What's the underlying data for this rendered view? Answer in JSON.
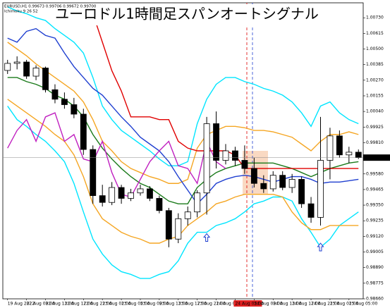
{
  "chart_data": {
    "type": "candlestick",
    "title": "ユーロドル1時間足スパンオートシグナル",
    "info_lines": [
      "EURUSD,H1 0.99673 0.99706 0.99672 0.99700",
      "Ichimoku 9 26 52"
    ],
    "categories": [
      "19 Aug 2022",
      null,
      "22 Aug 09:00",
      null,
      "22 Aug 13:00",
      null,
      "22 Aug 17:00",
      null,
      "22 Aug 21:00",
      null,
      "23 Aug 01:00",
      null,
      "23 Aug 05:00",
      null,
      "23 Aug 09:00",
      null,
      "23 Aug 13:00",
      null,
      "23 Aug 17:00",
      null,
      "23 Aug 21:00",
      null,
      "24 Aug 01:00",
      null,
      "24 Aug 05:00",
      null,
      "24 Aug 09:00",
      null,
      "24 Aug 13:00",
      null,
      "24 Aug 17:00",
      null,
      "24 Aug 21:00",
      null,
      "25 Aug 01:00",
      null,
      "25 Aug 05:00",
      null
    ],
    "highlighted_label_index": 24,
    "open": [
      1.00342,
      1.00394,
      1.00404,
      1.003,
      1.0036,
      1.002,
      1.0013,
      1.0009,
      1.0002,
      0.9976,
      0.9942,
      0.9937,
      0.9948,
      0.994,
      0.9944,
      0.9947,
      0.994,
      0.9931,
      0.991,
      0.9925,
      0.993,
      0.9944,
      0.9995,
      0.9968,
      0.9975,
      0.9968,
      0.9962,
      0.9951,
      0.9947,
      0.9957,
      0.9948,
      0.9954,
      0.9936,
      0.9926,
      0.9968,
      0.9986,
      0.9972,
      0.9974
    ],
    "high": [
      1.0042,
      1.00446,
      1.0042,
      1.0038,
      1.0037,
      1.0024,
      1.0018,
      1.0014,
      1.0006,
      0.9979,
      0.995,
      0.9952,
      0.995,
      0.9947,
      0.995,
      0.9949,
      0.9942,
      0.9933,
      0.9929,
      0.9934,
      0.9946,
      1.0,
      1.0004,
      0.998,
      0.9978,
      0.9979,
      0.997,
      0.9957,
      0.996,
      0.996,
      0.9958,
      0.9956,
      0.9941,
      1.0,
      0.9992,
      0.999,
      0.9978,
      0.9976
    ],
    "low": [
      1.00316,
      1.0035,
      1.0028,
      1.0027,
      1.0018,
      1.001,
      1.0006,
      0.9999,
      0.9972,
      0.9936,
      0.9934,
      0.9935,
      0.9936,
      0.9938,
      0.9942,
      0.9938,
      0.9929,
      0.9904,
      0.9907,
      0.992,
      0.9926,
      0.9928,
      0.9962,
      0.9965,
      0.9964,
      0.9958,
      0.9948,
      0.9944,
      0.9945,
      0.9946,
      0.9944,
      0.9933,
      0.9922,
      0.992,
      0.9954,
      0.997,
      0.9966,
      0.9969
    ],
    "close": [
      1.00394,
      1.00404,
      1.003,
      1.0036,
      1.002,
      1.0013,
      1.0009,
      1.0002,
      0.9976,
      0.9942,
      0.9937,
      0.9948,
      0.994,
      0.9944,
      0.9947,
      0.994,
      0.9931,
      0.991,
      0.9925,
      0.993,
      0.9944,
      0.9995,
      0.9968,
      0.9975,
      0.9968,
      0.9962,
      0.9951,
      0.9947,
      0.9957,
      0.9948,
      0.9954,
      0.9936,
      0.9926,
      0.9968,
      0.9986,
      0.9972,
      0.9974,
      0.997
    ],
    "up_color": "#ffffff",
    "down_color": "#000000",
    "series": [
      {
        "color": "#00e5ff",
        "values": [
          1.0081,
          1.0078,
          1.0076,
          1.0073,
          1.0071,
          1.0065,
          1.006,
          1.0055,
          1.0047,
          1.0029,
          1.0008,
          0.9998,
          0.999,
          0.9985,
          0.998,
          0.9975,
          0.9969,
          0.9964,
          0.9964,
          0.9967,
          0.9995,
          1.0013,
          1.0024,
          1.0029,
          1.0029,
          1.0026,
          1.0024,
          1.0021,
          1.0019,
          1.0016,
          1.0011,
          1.0003,
          0.9993,
          1.0008,
          1.0011,
          1.0003,
          0.9998,
          0.9995
        ]
      },
      {
        "color": "#00e5ff",
        "values": [
          1.0008,
          0.9998,
          0.9993,
          0.9987,
          0.9982,
          0.9975,
          0.9967,
          0.9951,
          0.993,
          0.991,
          0.9899,
          0.9891,
          0.9886,
          0.9884,
          0.9881,
          0.9881,
          0.9884,
          0.9886,
          0.9894,
          0.9907,
          0.9915,
          0.9915,
          0.992,
          0.9922,
          0.9925,
          0.993,
          0.9936,
          0.9938,
          0.9941,
          0.9941,
          0.9938,
          0.9925,
          0.9915,
          0.9904,
          0.991,
          0.992,
          0.9925,
          0.993
        ]
      },
      {
        "color": "#f5a623",
        "values": [
          1.0055,
          1.005,
          1.0045,
          1.0039,
          1.0034,
          1.0029,
          1.0024,
          1.0019,
          1.0011,
          0.9998,
          0.9982,
          0.9975,
          0.9967,
          0.9962,
          0.9959,
          0.9956,
          0.9954,
          0.9951,
          0.9951,
          0.9954,
          0.9977,
          0.9987,
          0.999,
          0.9993,
          0.9993,
          0.9992,
          0.999,
          0.999,
          0.9989,
          0.9987,
          0.9985,
          0.998,
          0.9975,
          0.9982,
          0.9987,
          0.9987,
          0.9989,
          0.9987
        ]
      },
      {
        "color": "#f5a623",
        "values": [
          1.0013,
          1.0008,
          1.0003,
          0.9998,
          0.9993,
          0.9987,
          0.9982,
          0.9972,
          0.9956,
          0.9936,
          0.9925,
          0.992,
          0.9915,
          0.9912,
          0.991,
          0.9907,
          0.9907,
          0.991,
          0.9912,
          0.992,
          0.9925,
          0.993,
          0.9936,
          0.9938,
          0.9941,
          0.9943,
          0.9943,
          0.9943,
          0.9943,
          0.9941,
          0.993,
          0.9922,
          0.9917,
          0.9917,
          0.992,
          0.992,
          0.992,
          0.992
        ]
      },
      {
        "color": "#1a7a1a",
        "values": [
          1.0029,
          1.0029,
          1.0026,
          1.0024,
          1.0021,
          1.0016,
          1.0013,
          1.0008,
          1.0,
          0.9987,
          0.9977,
          0.9969,
          0.9962,
          0.9956,
          0.9951,
          0.9948,
          0.9943,
          0.9938,
          0.9936,
          0.9936,
          0.9948,
          0.9954,
          0.9959,
          0.9962,
          0.9964,
          0.9966,
          0.9966,
          0.9966,
          0.9966,
          0.9964,
          0.9962,
          0.9959,
          0.9956,
          0.9959,
          0.9962,
          0.9964,
          0.9966,
          0.9967
        ]
      },
      {
        "color": "#e00000",
        "values": [
          null,
          null,
          null,
          null,
          null,
          null,
          null,
          null,
          null,
          1.0076,
          1.0055,
          1.0034,
          1.0019,
          1.0,
          1.0,
          1.0,
          0.9998,
          0.9998,
          0.9982,
          0.9977,
          0.9975,
          0.9975,
          0.9975,
          0.9975,
          0.9972,
          0.9962,
          0.9962,
          0.9962,
          0.9962,
          0.9962,
          0.9962,
          0.9962,
          0.9962,
          0.9962,
          0.9962,
          0.9962,
          0.9962,
          0.9962
        ]
      },
      {
        "color": "#1f3fd0",
        "values": [
          1.0058,
          1.0055,
          1.0063,
          1.0065,
          1.006,
          1.0058,
          1.0047,
          1.0037,
          1.0029,
          1.0021,
          1.0016,
          1.0008,
          1.0,
          0.9993,
          0.9985,
          0.998,
          0.9975,
          0.9967,
          0.9956,
          0.9946,
          0.9936,
          0.9943,
          0.9951,
          0.9954,
          0.9956,
          0.9957,
          0.9956,
          0.9954,
          0.9952,
          0.9954,
          0.9956,
          0.9956,
          0.9954,
          0.9951,
          0.9952,
          0.9952,
          0.9953,
          0.9954
        ]
      },
      {
        "color": "#c020c0",
        "values": [
          0.9977,
          0.999,
          0.9998,
          0.9982,
          1.0,
          1.0003,
          0.9982,
          0.9987,
          0.9969,
          0.9967,
          0.9982,
          0.9959,
          0.9943,
          0.9941,
          0.9954,
          0.9967,
          0.9975,
          0.9982,
          0.9964,
          0.9962,
          0.9951,
          0.9982,
          0.9967,
          0.9962,
          null,
          null,
          null,
          null,
          null,
          null,
          null,
          null,
          null,
          null,
          null,
          null,
          null,
          null
        ]
      }
    ],
    "signals": [
      {
        "index": 21,
        "value": 0.9914
      },
      {
        "index": 33,
        "value": 0.9907
      }
    ],
    "signal_color": "#1f3fd0",
    "last_price": {
      "value": 0.997,
      "label": "0.99700"
    },
    "ylim": [
      0.9866,
      1.0084
    ],
    "yticks": [
      {
        "value": 0.9866,
        "label": "0.98660"
      },
      {
        "value": 0.98775,
        "label": "0.98775"
      },
      {
        "value": 0.9889,
        "label": "0.98890"
      },
      {
        "value": 0.99005,
        "label": "0.99005"
      },
      {
        "value": 0.9912,
        "label": "0.99120"
      },
      {
        "value": 0.99235,
        "label": "0.99235"
      },
      {
        "value": 0.9935,
        "label": "0.99350"
      },
      {
        "value": 0.99465,
        "label": "0.99465"
      },
      {
        "value": 0.9958,
        "label": "0.99580"
      },
      {
        "value": 0.99695,
        "label": "0.99695"
      },
      {
        "value": 0.9981,
        "label": "0.99810"
      },
      {
        "value": 0.99925,
        "label": "0.99925"
      },
      {
        "value": 1.0004,
        "label": "1.00040"
      },
      {
        "value": 1.00155,
        "label": "1.00155"
      },
      {
        "value": 1.0027,
        "label": "1.00270"
      },
      {
        "value": 1.00385,
        "label": "1.00385"
      },
      {
        "value": 1.005,
        "label": "1.00500"
      },
      {
        "value": 1.00615,
        "label": "1.00615"
      },
      {
        "value": 1.0073,
        "label": "1.00730"
      }
    ]
  }
}
